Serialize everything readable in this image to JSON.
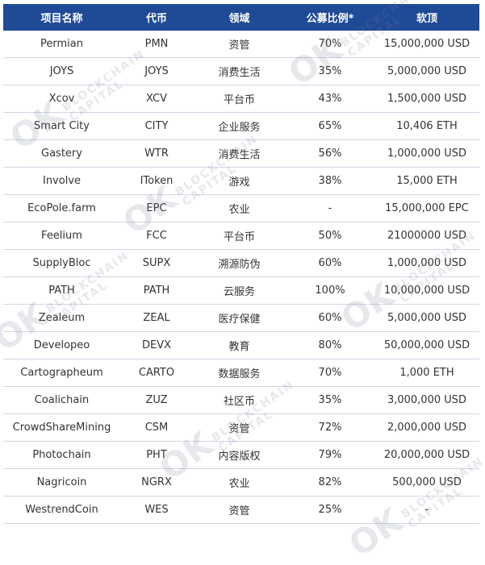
{
  "headers": [
    "项目名称",
    "代币",
    "领域",
    "公募比例*",
    "软顶"
  ],
  "rows": [
    [
      "Permian",
      "PMN",
      "资管",
      "70%",
      "15,000,000 USD"
    ],
    [
      "JOYS",
      "JOYS",
      "消费生活",
      "35%",
      "5,000,000 USD"
    ],
    [
      "Xcov",
      "XCV",
      "平台币",
      "43%",
      "1,500,000 USD"
    ],
    [
      "Smart City",
      "CITY",
      "企业服务",
      "65%",
      "10,406 ETH"
    ],
    [
      "Gastery",
      "WTR",
      "消费生活",
      "56%",
      "1,000,000 USD"
    ],
    [
      "Involve",
      "IToken",
      "游戏",
      "38%",
      "15,000 ETH"
    ],
    [
      "EcoPole.farm",
      "EPC",
      "农业",
      "-",
      "15,000,000 EPC"
    ],
    [
      "Feelium",
      "FCC",
      "平台币",
      "50%",
      "21000000 USD"
    ],
    [
      "SupplyBloc",
      "SUPX",
      "溯源防伪",
      "60%",
      "1,000,000 USD"
    ],
    [
      "PATH",
      "PATH",
      "云服务",
      "100%",
      "10,000,000 USD"
    ],
    [
      "Zealeum",
      "ZEAL",
      "医疗保健",
      "60%",
      "5,000,000 USD"
    ],
    [
      "Developeo",
      "DEVX",
      "教育",
      "80%",
      "50,000,000 USD"
    ],
    [
      "Cartographeum",
      "CARTO",
      "数据服务",
      "70%",
      "1,000 ETH"
    ],
    [
      "Coalichain",
      "ZUZ",
      "社区币",
      "35%",
      "3,000,000 USD"
    ],
    [
      "CrowdShareMining",
      "CSM",
      "资管",
      "72%",
      "2,000,000 USD"
    ],
    [
      "Photochain",
      "PHT",
      "内容版权",
      "79%",
      "20,000,000 USD"
    ],
    [
      "Nagricoin",
      "NGRX",
      "农业",
      "82%",
      "500,000 USD"
    ],
    [
      "WestrendCoin",
      "WES",
      "资管",
      "25%",
      "-"
    ]
  ],
  "watermark": {
    "big": "OK",
    "line1": "BLOCKCHAIN",
    "line2": "CAPITAL"
  }
}
